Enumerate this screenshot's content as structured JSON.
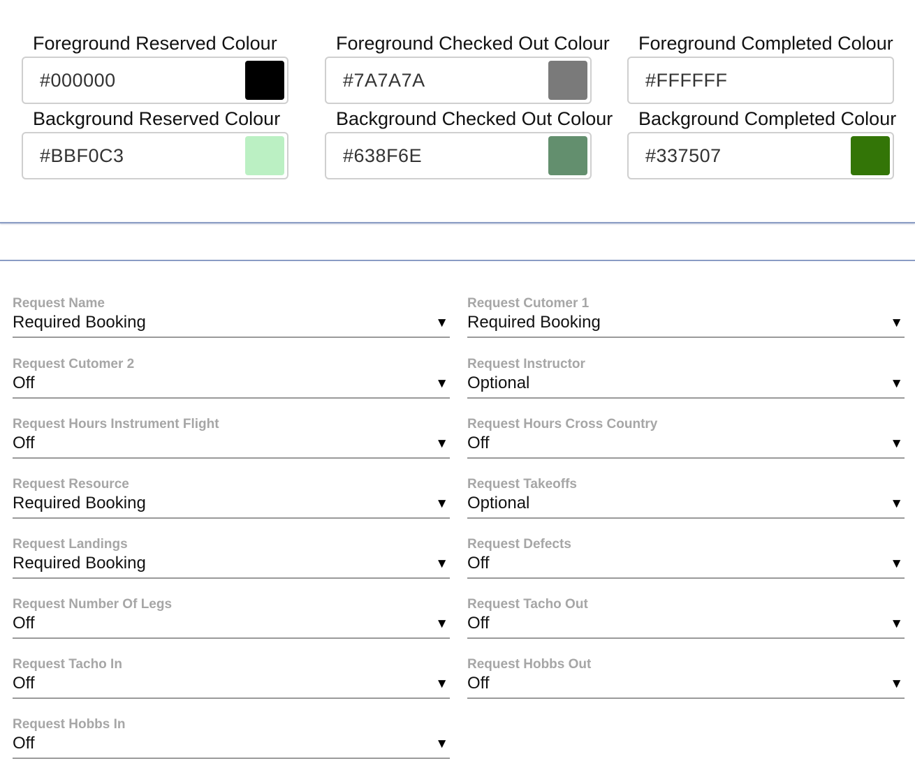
{
  "colours": [
    {
      "label": "Foreground Reserved Colour",
      "value": "#000000",
      "swatch": "#000000"
    },
    {
      "label": "Foreground Checked Out Colour",
      "value": "#7A7A7A",
      "swatch": "#7A7A7A"
    },
    {
      "label": "Foreground Completed Colour",
      "value": "#FFFFFF",
      "swatch": "#FFFFFF"
    },
    {
      "label": "Background Reserved Colour",
      "value": "#BBF0C3",
      "swatch": "#BBF0C3"
    },
    {
      "label": "Background Checked Out Colour",
      "value": "#638F6E",
      "swatch": "#638F6E"
    },
    {
      "label": "Background Completed Colour",
      "value": "#337507",
      "swatch": "#337507"
    }
  ],
  "requests": [
    {
      "label": "Request Name",
      "value": "Required Booking"
    },
    {
      "label": "Request Cutomer 1",
      "value": "Required Booking"
    },
    {
      "label": "Request Cutomer 2",
      "value": "Off"
    },
    {
      "label": "Request Instructor",
      "value": "Optional"
    },
    {
      "label": "Request Hours Instrument Flight",
      "value": "Off"
    },
    {
      "label": "Request Hours Cross Country",
      "value": "Off"
    },
    {
      "label": "Request Resource",
      "value": "Required Booking"
    },
    {
      "label": "Request Takeoffs",
      "value": "Optional"
    },
    {
      "label": "Request Landings",
      "value": "Required Booking"
    },
    {
      "label": "Request Defects",
      "value": "Off"
    },
    {
      "label": "Request Number Of Legs",
      "value": "Off"
    },
    {
      "label": "Request Tacho Out",
      "value": "Off"
    },
    {
      "label": "Request Tacho In",
      "value": "Off"
    },
    {
      "label": "Request Hobbs Out",
      "value": "Off"
    },
    {
      "label": "Request Hobbs In",
      "value": "Off"
    }
  ],
  "select_arrow": "▼"
}
